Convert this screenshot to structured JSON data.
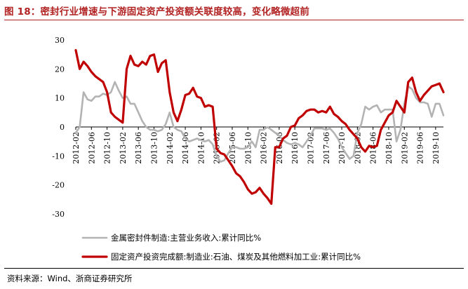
{
  "figure_title": "图 18：密封行业增速与下游固定资产投资额关联度较高，变化略微超前",
  "source": "资料来源：Wind、浙商证券研究所",
  "chart_data": {
    "type": "line",
    "title": "",
    "xlabel": "",
    "ylabel": "",
    "ylim": [
      -30,
      30
    ],
    "yticks": [
      -30,
      -20,
      -10,
      0,
      10,
      20,
      30
    ],
    "xlim": [
      "2012-02",
      "2019-12"
    ],
    "xticks": [
      "2012-02",
      "2012-06",
      "2012-10",
      "2013-02",
      "2013-06",
      "2013-10",
      "2014-02",
      "2014-06",
      "2014-10",
      "2015-02",
      "2015-06",
      "2015-10",
      "2016-02",
      "2016-06",
      "2016-10",
      "2017-02",
      "2017-06",
      "2017-10",
      "2018-02",
      "2018-06",
      "2018-10",
      "2019-02",
      "2019-06",
      "2019-10"
    ],
    "grid": false,
    "legend_position": "bottom",
    "series": [
      {
        "name": "金属密封件制造:主营业务收入:累计同比%",
        "color": "#b3b3b3",
        "points": [
          [
            "2012-02",
            -2
          ],
          [
            "2012-03",
            0
          ],
          [
            "2012-04",
            12
          ],
          [
            "2012-05",
            9.5
          ],
          [
            "2012-06",
            9
          ],
          [
            "2012-07",
            10.5
          ],
          [
            "2012-08",
            10.5
          ],
          [
            "2012-09",
            11.5
          ],
          [
            "2012-10",
            11
          ],
          [
            "2012-11",
            12
          ],
          [
            "2012-12",
            15.5
          ],
          [
            "2013-01",
            12.5
          ],
          [
            "2013-02",
            10
          ],
          [
            "2013-03",
            10.5
          ],
          [
            "2013-04",
            8
          ],
          [
            "2013-05",
            8
          ],
          [
            "2013-06",
            5
          ],
          [
            "2013-07",
            2
          ],
          [
            "2013-08",
            0
          ],
          [
            "2013-09",
            -1
          ],
          [
            "2013-10",
            -1
          ],
          [
            "2013-11",
            -1.5
          ],
          [
            "2013-12",
            -1
          ],
          [
            "2014-01",
            1
          ],
          [
            "2014-02",
            5
          ],
          [
            "2014-03",
            0
          ],
          [
            "2014-04",
            -1
          ],
          [
            "2014-05",
            -1.5
          ],
          [
            "2014-06",
            -4
          ],
          [
            "2014-07",
            -5
          ],
          [
            "2014-08",
            -4.5
          ],
          [
            "2014-09",
            -4
          ],
          [
            "2014-10",
            -4.5
          ],
          [
            "2014-11",
            -5
          ],
          [
            "2014-12",
            -4.5
          ],
          [
            "2015-01",
            -6
          ],
          [
            "2015-02",
            -10
          ],
          [
            "2015-03",
            -12
          ],
          [
            "2015-04",
            -11.5
          ],
          [
            "2015-05",
            -9
          ],
          [
            "2015-06",
            -7
          ],
          [
            "2015-07",
            -7
          ],
          [
            "2015-08",
            -7.5
          ],
          [
            "2015-09",
            -7.5
          ],
          [
            "2015-10",
            -7
          ],
          [
            "2015-11",
            -5
          ],
          [
            "2015-12",
            -7
          ],
          [
            "2016-01",
            -1
          ],
          [
            "2016-02",
            -1
          ],
          [
            "2016-03",
            0
          ],
          [
            "2016-04",
            -1
          ],
          [
            "2016-05",
            -2
          ],
          [
            "2016-06",
            -3
          ],
          [
            "2016-07",
            -4.5
          ],
          [
            "2016-08",
            -5.5
          ],
          [
            "2016-09",
            -6
          ],
          [
            "2016-10",
            -5.5
          ],
          [
            "2016-11",
            -6
          ],
          [
            "2016-12",
            -7
          ],
          [
            "2017-01",
            -5
          ],
          [
            "2017-02",
            -3
          ],
          [
            "2017-03",
            -0.5
          ],
          [
            "2017-04",
            -0.5
          ],
          [
            "2017-05",
            -0.5
          ],
          [
            "2017-06",
            -1
          ],
          [
            "2017-07",
            -0.5
          ],
          [
            "2017-08",
            -2
          ],
          [
            "2017-09",
            -4
          ],
          [
            "2017-10",
            -7
          ],
          [
            "2017-11",
            -9
          ],
          [
            "2017-12",
            -11
          ],
          [
            "2018-01",
            -10
          ],
          [
            "2018-02",
            -2
          ],
          [
            "2018-03",
            1
          ],
          [
            "2018-04",
            7
          ],
          [
            "2018-05",
            6
          ],
          [
            "2018-06",
            7
          ],
          [
            "2018-07",
            7.5
          ],
          [
            "2018-08",
            5
          ],
          [
            "2018-09",
            6
          ],
          [
            "2018-10",
            6
          ],
          [
            "2018-11",
            6
          ],
          [
            "2018-12",
            -5
          ],
          [
            "2019-01",
            -1
          ],
          [
            "2019-02",
            8
          ],
          [
            "2019-03",
            14
          ],
          [
            "2019-04",
            13
          ],
          [
            "2019-05",
            10
          ],
          [
            "2019-06",
            8.5
          ],
          [
            "2019-07",
            8.5
          ],
          [
            "2019-08",
            8
          ],
          [
            "2019-09",
            3.5
          ],
          [
            "2019-10",
            8
          ],
          [
            "2019-11",
            8
          ],
          [
            "2019-12",
            4
          ]
        ]
      },
      {
        "name": "固定资产投资完成额:制造业:石油、煤炭及其他燃料加工业:累计同比%",
        "color": "#c00000",
        "points": [
          [
            "2012-02",
            26.5
          ],
          [
            "2012-03",
            20
          ],
          [
            "2012-04",
            22.5
          ],
          [
            "2012-05",
            21
          ],
          [
            "2012-06",
            19
          ],
          [
            "2012-07",
            17.5
          ],
          [
            "2012-08",
            16.5
          ],
          [
            "2012-09",
            15.5
          ],
          [
            "2012-10",
            12
          ],
          [
            "2012-11",
            5
          ],
          [
            "2012-12",
            3.5
          ],
          [
            "2013-01",
            2.5
          ],
          [
            "2013-02",
            1.5
          ],
          [
            "2013-03",
            20
          ],
          [
            "2013-04",
            24.5
          ],
          [
            "2013-05",
            21.5
          ],
          [
            "2013-06",
            21
          ],
          [
            "2013-07",
            22.5
          ],
          [
            "2013-08",
            21.5
          ],
          [
            "2013-09",
            24.5
          ],
          [
            "2013-10",
            25
          ],
          [
            "2013-11",
            19
          ],
          [
            "2013-12",
            22
          ],
          [
            "2014-01",
            23
          ],
          [
            "2014-02",
            12
          ],
          [
            "2014-03",
            5
          ],
          [
            "2014-04",
            2
          ],
          [
            "2014-05",
            6
          ],
          [
            "2014-06",
            11
          ],
          [
            "2014-07",
            11.5
          ],
          [
            "2014-08",
            13.5
          ],
          [
            "2014-09",
            10.5
          ],
          [
            "2014-10",
            10
          ],
          [
            "2014-11",
            7
          ],
          [
            "2014-12",
            7.5
          ],
          [
            "2015-01",
            7
          ],
          [
            "2015-02",
            -7.5
          ],
          [
            "2015-03",
            -9
          ],
          [
            "2015-04",
            -9.5
          ],
          [
            "2015-05",
            -11.5
          ],
          [
            "2015-06",
            -13.5
          ],
          [
            "2015-07",
            -16
          ],
          [
            "2015-08",
            -17
          ],
          [
            "2015-09",
            -19
          ],
          [
            "2015-10",
            -21.5
          ],
          [
            "2015-11",
            -23
          ],
          [
            "2015-12",
            -22.5
          ],
          [
            "2016-01",
            -21
          ],
          [
            "2016-02",
            -23
          ],
          [
            "2016-03",
            -24.5
          ],
          [
            "2016-04",
            -26.5
          ],
          [
            "2016-05",
            -7
          ],
          [
            "2016-06",
            -7
          ],
          [
            "2016-07",
            -4
          ],
          [
            "2016-08",
            -3
          ],
          [
            "2016-09",
            0
          ],
          [
            "2016-10",
            0.5
          ],
          [
            "2016-11",
            3
          ],
          [
            "2016-12",
            4
          ],
          [
            "2017-01",
            5.5
          ],
          [
            "2017-02",
            6
          ],
          [
            "2017-03",
            6
          ],
          [
            "2017-04",
            5
          ],
          [
            "2017-05",
            5.5
          ],
          [
            "2017-06",
            5
          ],
          [
            "2017-07",
            7
          ],
          [
            "2017-08",
            4.5
          ],
          [
            "2017-09",
            3.5
          ],
          [
            "2017-10",
            2
          ],
          [
            "2017-11",
            1
          ],
          [
            "2017-12",
            -1
          ],
          [
            "2018-01",
            -2.5
          ],
          [
            "2018-02",
            -4
          ],
          [
            "2018-03",
            -7
          ],
          [
            "2018-04",
            -8.5
          ],
          [
            "2018-05",
            -6.5
          ],
          [
            "2018-06",
            -7
          ],
          [
            "2018-07",
            -6.5
          ],
          [
            "2018-08",
            -1
          ],
          [
            "2018-09",
            1.5
          ],
          [
            "2018-10",
            4
          ],
          [
            "2018-11",
            5
          ],
          [
            "2018-12",
            9
          ],
          [
            "2019-01",
            7
          ],
          [
            "2019-02",
            5
          ],
          [
            "2019-03",
            15.5
          ],
          [
            "2019-04",
            17
          ],
          [
            "2019-05",
            12
          ],
          [
            "2019-06",
            9
          ],
          [
            "2019-07",
            11
          ],
          [
            "2019-08",
            12.5
          ],
          [
            "2019-09",
            14
          ],
          [
            "2019-10",
            14.5
          ],
          [
            "2019-11",
            15
          ],
          [
            "2019-12",
            12
          ]
        ]
      }
    ]
  }
}
